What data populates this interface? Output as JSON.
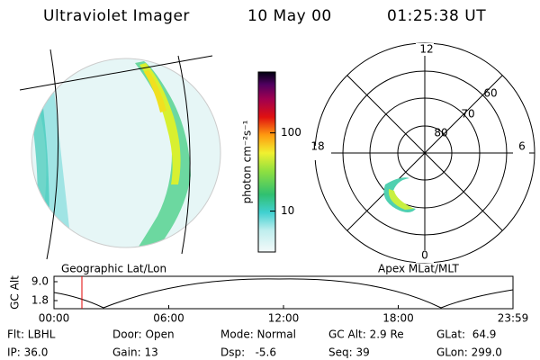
{
  "header": {
    "title": "Ultraviolet Imager",
    "date": "10 May 00",
    "time": "01:25:38 UT"
  },
  "colorbar": {
    "label": "photon cm⁻²s⁻¹",
    "range": [
      3,
      600
    ],
    "log_scale": true,
    "ticks": [
      10,
      100
    ]
  },
  "polar_plot": {
    "mlt_labels": [
      "12",
      "18",
      "6",
      "0"
    ],
    "mlat_labels": [
      "60",
      "70",
      "80"
    ]
  },
  "image_labels": {
    "left": "Geographic Lat/Lon",
    "right": "Apex MLat/MLT"
  },
  "altitude_plot": {
    "ylabel": "GC Alt",
    "yticks": [
      {
        "value": 9.0,
        "label": "9.0"
      },
      {
        "value": 1.8,
        "label": "1.8"
      }
    ],
    "xticks": [
      "00:00",
      "06:00",
      "12:00",
      "18:00",
      "23:59"
    ]
  },
  "info": [
    [
      "Flt: LBHL",
      "Door: Open",
      "Mode: Normal",
      "GC Alt: 2.9 Re",
      "GLat:  64.9"
    ],
    [
      "IP: 36.0",
      "Gain: 13",
      "Dsp:   -5.6",
      "Seq: 39",
      "GLon: 299.0"
    ]
  ]
}
